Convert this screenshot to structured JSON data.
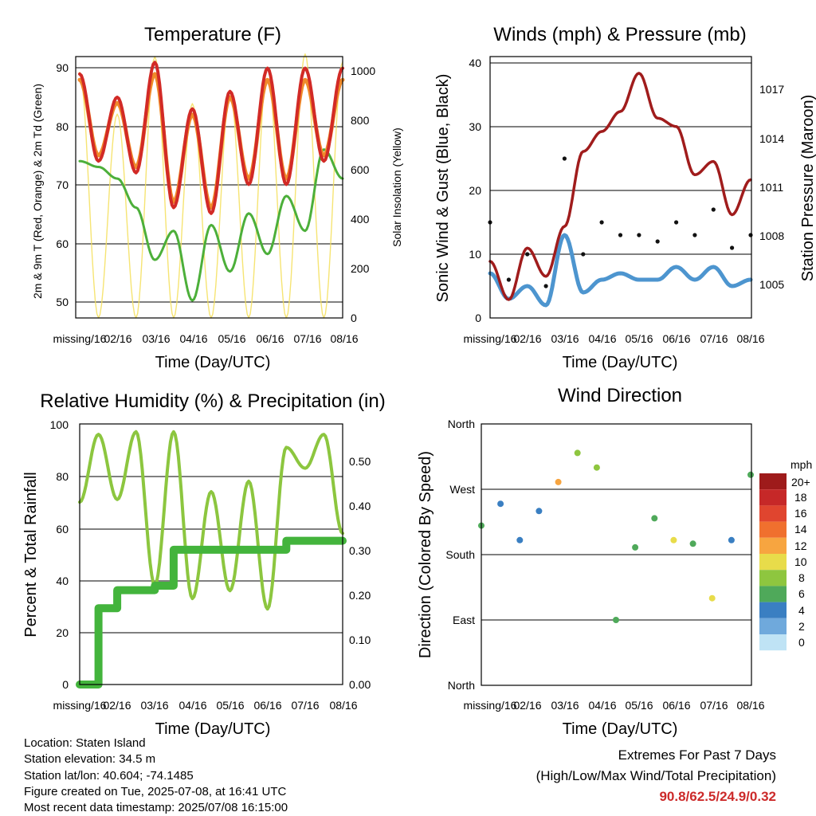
{
  "x_ticks": [
    "missing/16",
    "02/16",
    "03/16",
    "04/16",
    "05/16",
    "06/16",
    "07/16",
    "08/16"
  ],
  "temperature_panel": {
    "title": "Temperature (F)",
    "xlabel": "Time (Day/UTC)",
    "ylabel": "2m & 9m T (Red, Orange) & 2m Td (Green)",
    "ylabel_right": "Solar Insolation (Yellow)",
    "y_ticks": [
      "50",
      "60",
      "70",
      "80",
      "90"
    ],
    "y_ticks_right": [
      "0",
      "200",
      "400",
      "600",
      "800",
      "1000"
    ]
  },
  "wind_panel": {
    "title": "Winds (mph) & Pressure (mb)",
    "xlabel": "Time (Day/UTC)",
    "ylabel": "Sonic Wind & Gust (Blue, Black)",
    "ylabel_right": "Station Pressure (Maroon)",
    "y_ticks": [
      "0",
      "10",
      "20",
      "30",
      "40"
    ],
    "y_ticks_right": [
      "1005",
      "1008",
      "1011",
      "1014",
      "1017"
    ]
  },
  "rh_panel": {
    "title": "Relative Humidity (%) & Precipitation (in)",
    "xlabel": "Time (Day/UTC)",
    "ylabel": "Percent & Total Rainfall",
    "y_ticks": [
      "0",
      "20",
      "40",
      "60",
      "80",
      "100"
    ],
    "y_ticks_right": [
      "0.00",
      "0.10",
      "0.20",
      "0.30",
      "0.40",
      "0.50"
    ]
  },
  "direction_panel": {
    "title": "Wind Direction",
    "xlabel": "Time (Day/UTC)",
    "ylabel": "Direction (Colored By Speed)",
    "y_ticks": [
      "North",
      "East",
      "South",
      "West",
      "North"
    ],
    "legend_title": "mph",
    "legend_labels": [
      "20+",
      "18",
      "16",
      "14",
      "12",
      "10",
      "8",
      "6",
      "4",
      "2",
      "0"
    ],
    "legend_colors": [
      "#9e1b1b",
      "#c62828",
      "#e0452f",
      "#f0702e",
      "#f7a540",
      "#e8dc4a",
      "#8ec63f",
      "#4fa95a",
      "#3a7fc2",
      "#6fa9dc",
      "#bfe3f5"
    ]
  },
  "info": {
    "location": "Location: Staten Island",
    "elevation": "Station elevation: 34.5 m",
    "latlon": "Station lat/lon: 40.604; -74.1485",
    "created": "Figure created on Tue, 2025-07-08, at 16:41 UTC",
    "recent": "Most recent data timestamp: 2025/07/08 16:15:00"
  },
  "extremes": {
    "title": "Extremes For Past 7 Days",
    "subtitle": "(High/Low/Max Wind/Total Precipitation)",
    "values": "90.8/62.5/24.9/0.32"
  },
  "chart_data": [
    {
      "type": "line",
      "title": "Temperature (F)",
      "xlabel": "Time (Day/UTC)",
      "ylabel": "2m & 9m T (Red, Orange) & 2m Td (Green)",
      "ylabel_right": "Solar Insolation (Yellow)",
      "x": [
        0,
        0.5,
        1,
        1.5,
        2,
        2.5,
        3,
        3.5,
        4,
        4.5,
        5,
        5.5,
        6,
        6.5,
        7
      ],
      "ylim": [
        47,
        92
      ],
      "ylim_right": [
        0,
        1000
      ],
      "series": [
        {
          "name": "2m T",
          "axis": "left",
          "color": "#d22a26",
          "values": [
            89,
            74,
            85,
            72,
            91,
            66,
            83,
            65,
            86,
            70,
            90,
            70,
            90,
            74,
            90
          ]
        },
        {
          "name": "9m T",
          "axis": "left",
          "color": "#f08a2a",
          "values": [
            88,
            75,
            84,
            73,
            89,
            67,
            82,
            66,
            85,
            71,
            88,
            71,
            88,
            75,
            88
          ]
        },
        {
          "name": "2m Td",
          "axis": "left",
          "color": "#4caf3a",
          "values": [
            74,
            73,
            71,
            66,
            57,
            62,
            50,
            63,
            55,
            65,
            58,
            68,
            62,
            76,
            71
          ]
        },
        {
          "name": "Solar Insolation",
          "axis": "right",
          "color": "#f4df5a",
          "values": [
            940,
            0,
            780,
            0,
            1000,
            0,
            820,
            0,
            870,
            0,
            960,
            0,
            1010,
            0,
            980
          ]
        }
      ]
    },
    {
      "type": "line",
      "title": "Winds (mph) & Pressure (mb)",
      "xlabel": "Time (Day/UTC)",
      "ylabel": "Sonic Wind & Gust (Blue, Black)",
      "ylabel_right": "Station Pressure (Maroon)",
      "x": [
        0,
        0.5,
        1,
        1.5,
        2,
        2.5,
        3,
        3.5,
        4,
        4.5,
        5,
        5.5,
        6,
        6.5,
        7
      ],
      "ylim": [
        0,
        41
      ],
      "ylim_right": [
        1003.1,
        1018.8
      ],
      "series": [
        {
          "name": "Sonic Wind",
          "axis": "left",
          "color": "#4d95cf",
          "values": [
            7,
            3,
            5,
            2,
            13,
            4,
            6,
            7,
            6,
            6,
            8,
            6,
            8,
            5,
            6
          ]
        },
        {
          "name": "Gust",
          "axis": "left",
          "color": "#111111",
          "values": [
            15,
            6,
            10,
            5,
            25,
            10,
            15,
            13,
            13,
            12,
            15,
            13,
            17,
            11,
            13
          ]
        },
        {
          "name": "Station Pressure",
          "axis": "right",
          "color": "#a01c1c",
          "values": [
            1006.5,
            1004.2,
            1007.3,
            1005.6,
            1008.6,
            1013.1,
            1014.3,
            1015.5,
            1017.8,
            1015.1,
            1014.6,
            1011.7,
            1012.5,
            1009.3,
            1011.4
          ]
        }
      ]
    },
    {
      "type": "line",
      "title": "Relative Humidity (%) & Precipitation (in)",
      "xlabel": "Time (Day/UTC)",
      "ylabel": "Percent & Total Rainfall",
      "x": [
        0,
        0.5,
        1,
        1.5,
        2,
        2.5,
        3,
        3.5,
        4,
        4.5,
        5,
        5.5,
        6,
        6.5,
        7
      ],
      "ylim": [
        0,
        100
      ],
      "ylim_right": [
        0,
        0.58
      ],
      "series": [
        {
          "name": "Relative Humidity",
          "axis": "left",
          "color": "#8cc63f",
          "values": [
            70,
            96,
            71,
            97,
            38,
            97,
            33,
            74,
            36,
            78,
            29,
            91,
            83,
            96,
            58
          ]
        },
        {
          "name": "Total Rainfall",
          "axis": "right",
          "color": "#43b43c",
          "values": [
            0.0,
            0.17,
            0.21,
            0.21,
            0.22,
            0.3,
            0.3,
            0.3,
            0.3,
            0.3,
            0.3,
            0.32,
            0.32,
            0.32,
            0.32
          ]
        }
      ]
    },
    {
      "type": "scatter",
      "title": "Wind Direction",
      "xlabel": "Time (Day/UTC)",
      "ylabel": "Direction (Colored By Speed)",
      "x": [
        0,
        0.5,
        1,
        1.5,
        2,
        2.5,
        3,
        3.5,
        4,
        4.5,
        5,
        5.5,
        6,
        6.5,
        7
      ],
      "ylim": [
        0,
        360
      ],
      "values": [
        220,
        250,
        200,
        240,
        280,
        320,
        300,
        90,
        190,
        230,
        200,
        195,
        120,
        200,
        290
      ],
      "speed_mph": [
        5,
        3,
        4,
        3,
        12,
        8,
        8,
        5,
        5,
        6,
        10,
        5,
        10,
        4,
        5
      ]
    }
  ]
}
